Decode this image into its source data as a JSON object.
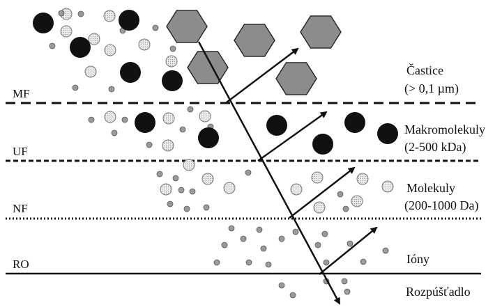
{
  "levels": {
    "mf": "MF",
    "uf": "UF",
    "nf": "NF",
    "ro": "RO"
  },
  "categories": {
    "particles": "Častice",
    "particles_range": "(> 0,1 µm)",
    "macromolecules": "Makromolekuly",
    "macromolecules_range": "(2-500 kDa)",
    "molecules": "Molekuly",
    "molecules_range": "(200-1000 Da)",
    "ions": "Ióny",
    "solvent": "Rozpúšťadlo"
  },
  "colors": {
    "hexagon": "#8c8c8c",
    "macromolecule": "#111111",
    "small_particle": "#cfcfcf",
    "ion": "#9a9a9a",
    "line": "#111111"
  }
}
